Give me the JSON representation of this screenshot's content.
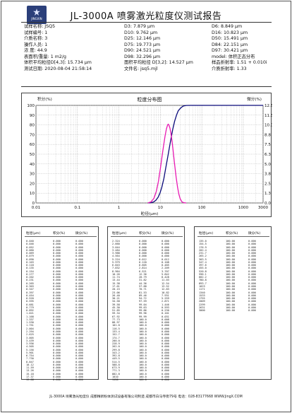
{
  "report": {
    "logo_text": "JINGXIN",
    "title": "JL-3000A 喷雾激光粒度仪测试报告"
  },
  "info": {
    "col_a": [
      "试样名称: JSQ5",
      "试样编号: 1",
      "介质名称: 3",
      "操作人员: 1",
      "浓    度: 44.9",
      "表面积/重量: 1 m2/g",
      "体积平均粒径D[4,3]: 15.734 µm",
      "测试日期: 2020-08-04 21:58:14"
    ],
    "col_b": [
      "D3: 7.879 µm",
      "D10: 9.762 µm",
      "D25: 12.146 µm",
      "D75: 19.773 µm",
      "D90: 24.521 µm",
      "D98: 32.296 µm",
      "面积平均粒径 D[3,2]: 14.527 µm",
      "文件名: jsq5.mjl"
    ],
    "col_c": [
      "D6: 8.849 µm",
      "D16: 10.823 µm",
      "D50: 15.491 µm",
      "D84: 22.151 µm",
      "D97: 30.421 µm",
      "model: 体积正态分布",
      "样品折射率: 1.51 + 0.010i",
      "介质折射率: 1.33"
    ]
  },
  "chart_data": {
    "type": "line",
    "title": "粒度分布图",
    "xlabel": "粒径(µm)",
    "ylabel_left": "积分(%)",
    "ylabel_right": "微分(%)",
    "x_scale": "log",
    "xlim": [
      0.01,
      3000
    ],
    "x_ticks": [
      "0.01",
      "0.1",
      "1",
      "10",
      "100",
      "1000",
      "3000"
    ],
    "y_left_lim": [
      0,
      100
    ],
    "y_left_ticks": [
      "0",
      "10",
      "20",
      "30",
      "40",
      "50",
      "60",
      "70",
      "80",
      "90",
      "100"
    ],
    "y_right_lim": [
      0,
      12.5
    ],
    "y_right_ticks": [
      "0.0",
      "1.3",
      "2.5",
      "3.8",
      "5.0",
      "6.3",
      "7.5",
      "8.8",
      "10.0",
      "11.3",
      "12.5"
    ],
    "grid": true,
    "series": [
      {
        "axis": "left",
        "color": "#0a0a7a",
        "x": [
          5,
          6,
          7,
          7.879,
          8.849,
          9.762,
          10.823,
          12.146,
          13.5,
          15.491,
          17.5,
          19.773,
          22.151,
          24.521,
          27,
          30.421,
          32.296,
          36,
          42,
          50,
          3000
        ],
        "y": [
          0,
          0.3,
          1.2,
          3,
          6,
          10,
          16,
          25,
          36,
          50,
          63,
          75,
          84,
          90,
          94.5,
          97,
          98,
          99.4,
          99.9,
          100,
          100
        ]
      },
      {
        "axis": "right",
        "color": "#e81ab3",
        "x": [
          5,
          6,
          7,
          8,
          9,
          10,
          11,
          12,
          13,
          14,
          15,
          15.5,
          16,
          17,
          18,
          19,
          20,
          22,
          24,
          26,
          28,
          30,
          33,
          37,
          42
        ],
        "y": [
          0,
          0.15,
          0.6,
          1.5,
          2.8,
          4.4,
          6.0,
          7.4,
          8.6,
          9.5,
          10.0,
          10.1,
          10.0,
          9.6,
          8.9,
          8.0,
          7.0,
          5.0,
          3.3,
          2.0,
          1.1,
          0.55,
          0.15,
          0.03,
          0
        ]
      }
    ]
  },
  "tables": {
    "headers": {
      "size": "粒径(µm)",
      "cum": "积分(%)",
      "diff": "微分(%)"
    },
    "cols": [
      {
        "rows": [
          [
            "0.040",
            "0.000",
            "0.000"
          ],
          [
            "0.046",
            "0.000",
            "0.000"
          ],
          [
            "0.052",
            "0.000",
            "0.000"
          ],
          [
            "0.060",
            "0.000",
            "0.000"
          ],
          [
            "0.069",
            "0.000",
            "0.000"
          ],
          [
            "0.079",
            "0.000",
            "0.000"
          ],
          [
            "0.090",
            "0.000",
            "0.000"
          ],
          [
            "0.103",
            "0.000",
            "0.000"
          ],
          [
            "0.118",
            "0.000",
            "0.000"
          ],
          [
            "0.135",
            "0.000",
            "0.000"
          ],
          [
            "0.154",
            "0.000",
            "0.000"
          ],
          [
            "0.177",
            "0.000",
            "0.000"
          ],
          [
            "0.202",
            "0.000",
            "0.000"
          ],
          [
            "0.231",
            "0.000",
            "0.000"
          ],
          [
            "0.265",
            "0.000",
            "0.000"
          ],
          [
            "0.303",
            "0.000",
            "0.000"
          ],
          [
            "0.347",
            "0.000",
            "0.000"
          ],
          [
            "0.397",
            "0.000",
            "0.000"
          ],
          [
            "0.454",
            "0.000",
            "0.000"
          ],
          [
            "0.520",
            "0.000",
            "0.000"
          ],
          [
            "0.595",
            "0.000",
            "0.000"
          ],
          [
            "0.681",
            "0.000",
            "0.000"
          ],
          [
            "0.779",
            "0.000",
            "0.000"
          ],
          [
            "0.892",
            "0.000",
            "0.000"
          ],
          [
            "1.021",
            "0.000",
            "0.000"
          ],
          [
            "1.168",
            "0.000",
            "0.000"
          ],
          [
            "1.337",
            "0.000",
            "0.000"
          ],
          [
            "1.530",
            "0.000",
            "0.000"
          ],
          [
            "1.751",
            "0.000",
            "0.000"
          ],
          [
            "2.004",
            "0.000",
            "0.000"
          ],
          [
            "2.294",
            "0.000",
            "0.000"
          ],
          [
            "2.625",
            "0.000",
            "0.000"
          ],
          [
            "3.005",
            "0.000",
            "0.000"
          ],
          [
            "3.439",
            "0.000",
            "0.000"
          ],
          [
            "3.936",
            "0.000",
            "0.000"
          ],
          [
            "4.505",
            "0.000",
            "0.000"
          ],
          [
            "5.156",
            "0.000",
            "0.000"
          ],
          [
            "5.901",
            "0.000",
            "0.000"
          ],
          [
            "6.754",
            "0.000",
            "0.000"
          ],
          [
            "7.730",
            "0.000",
            "0.000"
          ],
          [
            "8.847",
            "0.000",
            "0.000"
          ],
          [
            "10.12",
            "0.000",
            "0.000"
          ],
          [
            "11.59",
            "0.000",
            "0.000"
          ],
          [
            "13.26",
            "0.000",
            "0.000"
          ],
          [
            "15.18",
            "0.000",
            "0.000"
          ],
          [
            "17.37",
            "0.000",
            "0.000"
          ],
          [
            "19.88",
            "0.000",
            "0.000"
          ]
        ]
      },
      {
        "rows": [
          [
            "2.324",
            "0.000",
            "0.000"
          ],
          [
            "2.660",
            "0.000",
            "0.000"
          ],
          [
            "3.044",
            "0.000",
            "0.000"
          ],
          [
            "3.484",
            "0.000",
            "0.000"
          ],
          [
            "3.988",
            "0.000",
            "0.000"
          ],
          [
            "4.564",
            "0.000",
            "0.000"
          ],
          [
            "5.224",
            "0.012",
            "0.012"
          ],
          [
            "5.979",
            "0.120",
            "0.108"
          ],
          [
            "6.843",
            "0.605",
            "0.485"
          ],
          [
            "7.832",
            "2.814",
            "2.209"
          ],
          [
            "8.964",
            "6.521",
            "3.707"
          ],
          [
            "10.26",
            "12.36",
            "5.842"
          ],
          [
            "11.74",
            "20.79",
            "8.428"
          ],
          [
            "13.44",
            "31.82",
            "11.03"
          ],
          [
            "15.38",
            "44.36",
            "12.54"
          ],
          [
            "17.61",
            "57.88",
            "13.52"
          ],
          [
            "20.15",
            "70.71",
            "12.83"
          ],
          [
            "23.06",
            "81.53",
            "10.82"
          ],
          [
            "26.40",
            "89.46",
            "7.931"
          ],
          [
            "30.21",
            "94.72",
            "5.259"
          ],
          [
            "34.58",
            "97.59",
            "2.871"
          ],
          [
            "39.58",
            "99.04",
            "1.446"
          ],
          [
            "45.30",
            "99.63",
            "0.593"
          ],
          [
            "51.85",
            "99.86",
            "0.230"
          ],
          [
            "59.34",
            "99.96",
            "0.101"
          ],
          [
            "67.92",
            "99.99",
            "0.031"
          ],
          [
            "77.73",
            "100.0",
            "0.008"
          ],
          [
            "88.97",
            "100.0",
            "0.000"
          ],
          [
            "101.8",
            "100.0",
            "0.000"
          ],
          [
            "116.5",
            "100.0",
            "0.000"
          ],
          [
            "133.4",
            "100.0",
            "0.000"
          ],
          [
            "152.7",
            "100.0",
            "0.000"
          ],
          [
            "174.7",
            "100.0",
            "0.000"
          ],
          [
            "200.0",
            "100.0",
            "0.000"
          ],
          [
            "228.9",
            "100.0",
            "0.000"
          ],
          [
            "262.0",
            "100.0",
            "0.000"
          ],
          [
            "299.8",
            "100.0",
            "0.000"
          ],
          [
            "343.2",
            "100.0",
            "0.000"
          ],
          [
            "392.8",
            "100.0",
            "0.000"
          ],
          [
            "449.5",
            "100.0",
            "0.000"
          ],
          [
            "514.5",
            "100.0",
            "0.000"
          ],
          [
            "588.8",
            "100.0",
            "0.000"
          ],
          [
            "673.9",
            "100.0",
            "0.000"
          ],
          [
            "771.3",
            "100.0",
            "0.000"
          ],
          [
            "882.8",
            "100.0",
            "0.000"
          ],
          [
            "1010",
            "100.0",
            "0.000"
          ],
          [
            "1156",
            "100.0",
            "0.000"
          ]
        ]
      },
      {
        "rows": [
          [
            "135.0",
            "100.00",
            "0.000"
          ],
          [
            "154.5",
            "100.00",
            "0.000"
          ],
          [
            "176.9",
            "100.00",
            "0.000"
          ],
          [
            "202.4",
            "100.00",
            "0.000"
          ],
          [
            "231.7",
            "100.00",
            "0.000"
          ],
          [
            "265.2",
            "100.00",
            "0.000"
          ],
          [
            "303.5",
            "100.00",
            "0.000"
          ],
          [
            "347.4",
            "100.00",
            "0.000"
          ],
          [
            "397.6",
            "100.00",
            "0.000"
          ],
          [
            "455.0",
            "100.00",
            "0.000"
          ],
          [
            "520.8",
            "100.00",
            "0.000"
          ],
          [
            "596.1",
            "100.00",
            "0.000"
          ],
          [
            "682.2",
            "100.00",
            "0.000"
          ],
          [
            "780.8",
            "100.00",
            "0.000"
          ],
          [
            "893.7",
            "100.00",
            "0.000"
          ],
          [
            "1023",
            "100.00",
            "0.000"
          ],
          [
            "1171",
            "100.00",
            "0.000"
          ],
          [
            "1340",
            "100.00",
            "0.000"
          ],
          [
            "1533",
            "100.00",
            "0.000"
          ],
          [
            "1755",
            "100.00",
            "0.000"
          ],
          [
            "2009",
            "100.00",
            "0.000"
          ],
          [
            "2299",
            "100.00",
            "0.000"
          ],
          [
            "2631",
            "100.00",
            "0.000"
          ],
          [
            "3000",
            "100.00",
            "0.000"
          ]
        ]
      }
    ]
  },
  "footer": "JL-3000A 喷雾激光粒度仪  成都精新粉体测试设备有限公司制造  成都市白马寺街79号 电话：028-83177668 WWW.JingX.COM"
}
